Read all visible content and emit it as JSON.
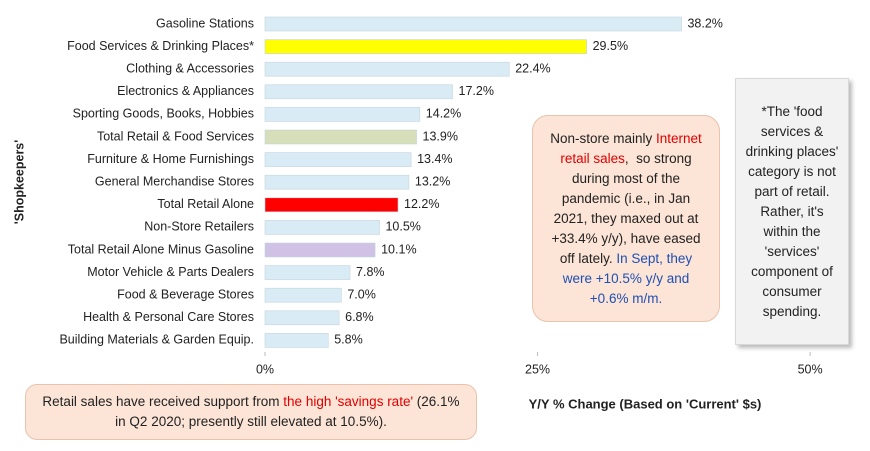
{
  "chart_data": {
    "type": "bar",
    "orientation": "horizontal",
    "categories": [
      "Gasoline Stations",
      "Food Services & Drinking Places*",
      "Clothing & Accessories",
      "Electronics & Appliances",
      "Sporting Goods, Books, Hobbies",
      "Total Retail & Food Services",
      "Furniture & Home Furnishings",
      "General Merchandise Stores",
      "Total Retail Alone",
      "Non-Store Retailers",
      "Total Retail Alone Minus Gasoline",
      "Motor Vehicle & Parts Dealers",
      "Food & Beverage Stores",
      "Health & Personal Care Stores",
      "Building Materials & Garden Equip."
    ],
    "values": [
      38.2,
      29.5,
      22.4,
      17.2,
      14.2,
      13.9,
      13.4,
      13.2,
      12.2,
      10.5,
      10.1,
      7.8,
      7.0,
      6.8,
      5.8
    ],
    "value_labels": [
      "38.2%",
      "29.5%",
      "22.4%",
      "17.2%",
      "14.2%",
      "13.9%",
      "13.4%",
      "13.2%",
      "12.2%",
      "10.5%",
      "10.1%",
      "7.8%",
      "7.0%",
      "6.8%",
      "5.8%"
    ],
    "colors": [
      "#d9ecf5",
      "#ffff00",
      "#d9ecf5",
      "#d9ecf5",
      "#d9ecf5",
      "#d6dfba",
      "#d9ecf5",
      "#d9ecf5",
      "#ff0000",
      "#d9ecf5",
      "#cfc2e4",
      "#d9ecf5",
      "#d9ecf5",
      "#d9ecf5",
      "#d9ecf5"
    ],
    "xlim": [
      0,
      53.2
    ],
    "xticks": [
      {
        "value": 0,
        "label": "0%"
      },
      {
        "value": 25,
        "label": "25%"
      },
      {
        "value": 50,
        "label": "50%"
      }
    ],
    "ylabel": "'Shopkeepers'",
    "xlabel": "Y/Y % Change (Based  on 'Current' $s)",
    "annotations": [
      {
        "segments": [
          {
            "text": "Non-store mainly ",
            "color": "#222222"
          },
          {
            "text": "Internet retail sales",
            "color": "#e00000"
          },
          {
            "text": ",  so strong during most of the pandemic (i.e., in Jan 2021, they maxed out at +33.4% y/y), have eased off lately. ",
            "color": "#222222"
          },
          {
            "text": "In Sept, they were +10.5% y/y and +0.6% m/m.",
            "color": "#1f4fb4"
          }
        ]
      },
      {
        "segments": [
          {
            "text": "*The 'food services & drinking places' category is not part of retail. Rather, it's within the 'services' component of consumer spending.",
            "color": "#222222"
          }
        ]
      },
      {
        "segments": [
          {
            "text": "Retail sales have received support from ",
            "color": "#222222"
          },
          {
            "text": "the high 'savings rate'",
            "color": "#e00000"
          },
          {
            "text": " (26.1% in Q2 2020; presently still elevated at 10.5%).",
            "color": "#222222"
          }
        ]
      }
    ]
  }
}
